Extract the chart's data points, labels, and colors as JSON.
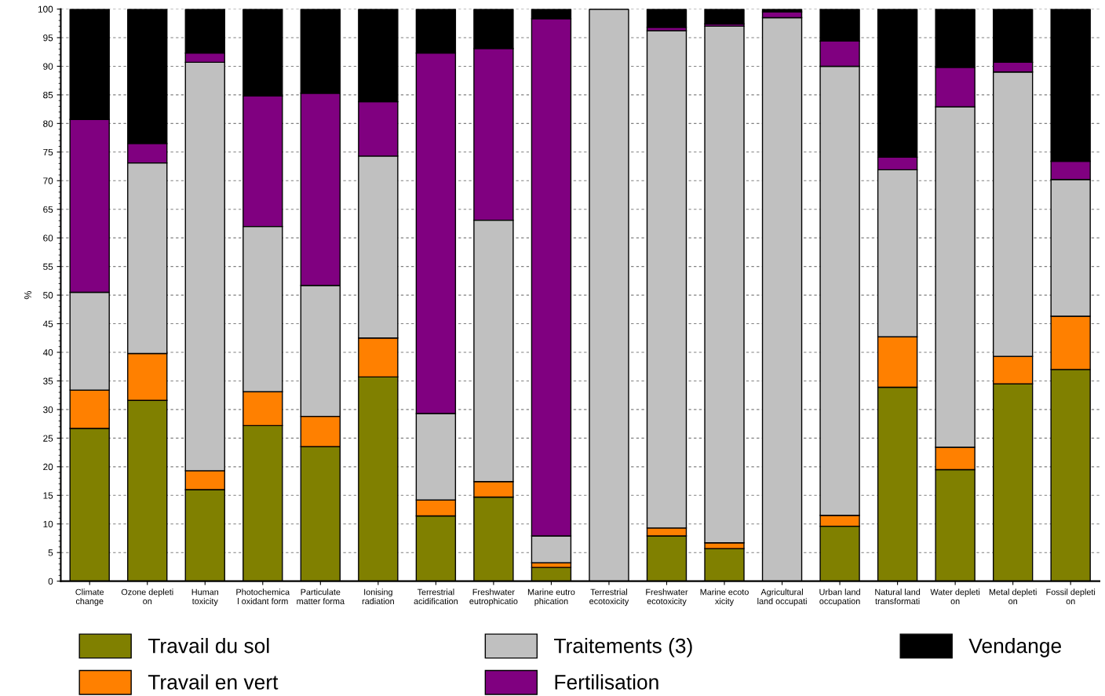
{
  "chart_data": {
    "type": "bar",
    "stacked": true,
    "ylabel": "%",
    "ylim": [
      0,
      100
    ],
    "yticks": [
      0,
      5,
      10,
      15,
      20,
      25,
      30,
      35,
      40,
      45,
      50,
      55,
      60,
      65,
      70,
      75,
      80,
      85,
      90,
      95,
      100
    ],
    "grid": "y",
    "legend": "bottom",
    "categories": [
      "Climate\nchange",
      "Ozone depleti\non",
      "Human\ntoxicity",
      "Photochemica\nl oxidant form",
      "Particulate\nmatter forma",
      "Ionising\nradiation",
      "Terrestrial\nacidification",
      "Freshwater\neutrophicatio",
      "Marine eutro\nphication",
      "Terrestrial\necotoxicity",
      "Freshwater\necotoxicity",
      "Marine ecoto\nxicity",
      "Agricultural\nland occupati",
      "Urban land\noccupation",
      "Natural land\ntransformati",
      "Water depleti\non",
      "Metal depleti\non",
      "Fossil depleti\non"
    ],
    "series": [
      {
        "name": "Travail du sol",
        "color": "#808000",
        "values": [
          26.7,
          31.6,
          16.0,
          27.2,
          23.5,
          35.7,
          11.4,
          14.7,
          2.4,
          null,
          7.9,
          5.7,
          null,
          9.6,
          33.9,
          19.5,
          34.5,
          37.0
        ]
      },
      {
        "name": "Travail en vert",
        "color": "#ff8000",
        "values": [
          6.7,
          8.2,
          3.3,
          5.9,
          5.3,
          6.8,
          2.8,
          2.7,
          0.8,
          0,
          1.4,
          1.0,
          null,
          1.9,
          8.8,
          3.9,
          4.8,
          9.3
        ]
      },
      {
        "name": "Traitements (3)",
        "color": "#c0c0c0",
        "values": [
          17.1,
          33.3,
          71.4,
          28.9,
          22.9,
          31.8,
          15.1,
          45.7,
          4.7,
          100,
          86.9,
          90.3,
          98.5,
          78.5,
          29.2,
          59.5,
          49.7,
          23.9
        ]
      },
      {
        "name": "Fertilisation",
        "color": "#800080",
        "values": [
          30.2,
          3.4,
          1.6,
          22.8,
          33.6,
          9.5,
          63.0,
          30.0,
          90.4,
          0,
          0.6,
          0.4,
          1.0,
          4.4,
          2.2,
          6.9,
          1.7,
          3.2
        ]
      },
      {
        "name": "Vendange",
        "color": "#000000",
        "values": [
          19.3,
          23.5,
          7.7,
          15.2,
          14.7,
          16.2,
          7.7,
          6.9,
          1.7,
          0,
          3.2,
          2.6,
          0.5,
          5.6,
          25.9,
          10.2,
          9.3,
          26.6
        ]
      }
    ]
  }
}
